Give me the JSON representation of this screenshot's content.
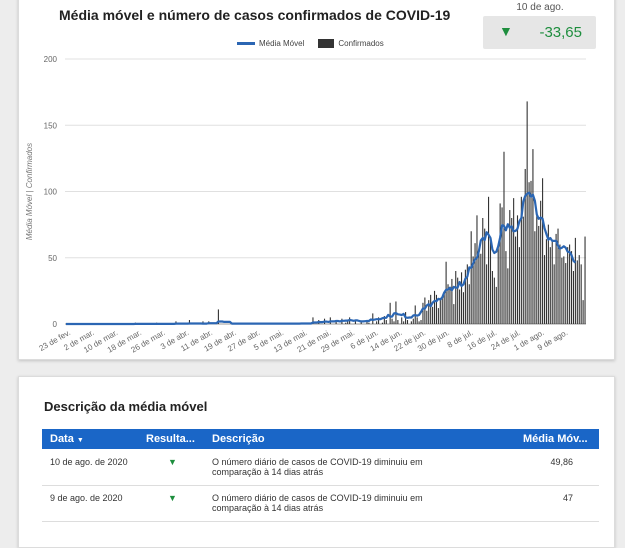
{
  "chart": {
    "title": "Média móvel e número de casos confirmados de COVID-19",
    "legend": {
      "line": "Média Móvel",
      "bars": "Confirmados"
    },
    "colors": {
      "line": "#2b66b3",
      "bars": "#333333",
      "grid": "#e0e0e0"
    }
  },
  "kpi": {
    "date": "10 de ago.",
    "value": "-33,65",
    "arrow_icon": "down-triangle-icon",
    "color": "#1e8e3e"
  },
  "chart_data": {
    "type": "bar",
    "ylabel": "Média Móvel | Confirmados",
    "ylim": [
      0,
      200
    ],
    "yticks": [
      "0",
      "50",
      "100",
      "150",
      "200"
    ],
    "xtick_labels": [
      "23 de fev.",
      "2 de mar.",
      "10 de mar.",
      "18 de mar.",
      "26 de mar.",
      "3 de abr.",
      "11 de abr.",
      "19 de abr.",
      "27 de abr.",
      "5 de mai.",
      "13 de mai.",
      "21 de mai.",
      "29 de mai.",
      "6 de jun.",
      "14 de jun.",
      "22 de jun.",
      "30 de jun.",
      "8 de jul.",
      "16 de jul.",
      "24 de jul.",
      "1 de ago.",
      "9 de ago."
    ],
    "series": [
      {
        "name": "Confirmados",
        "type": "bar",
        "values": [
          0,
          0,
          0,
          0,
          0,
          0,
          0,
          0,
          0,
          0,
          0,
          0,
          0,
          0,
          0,
          0,
          0,
          0,
          0,
          0,
          0,
          0,
          0,
          0,
          0,
          0,
          0,
          0,
          0,
          0,
          0,
          0,
          0,
          0,
          0,
          0,
          1,
          0,
          0,
          0,
          0,
          0,
          0,
          0,
          0,
          0,
          0,
          1,
          0,
          0,
          0,
          0,
          0,
          0,
          0,
          0,
          0,
          2,
          0,
          0,
          0,
          0,
          0,
          0,
          3,
          0,
          0,
          0,
          0,
          0,
          0,
          2,
          0,
          0,
          2,
          0,
          0,
          0,
          0,
          11,
          0,
          0,
          0,
          0,
          0,
          0,
          1,
          0,
          0,
          0,
          0,
          0,
          0,
          1,
          0,
          0,
          0,
          0,
          0,
          0,
          1,
          0,
          0,
          0,
          0,
          0,
          0,
          0,
          0,
          0,
          0,
          0,
          0,
          0,
          0,
          0,
          0,
          0,
          0,
          0,
          0,
          0,
          1,
          0,
          0,
          0,
          0,
          0,
          5,
          0,
          0,
          3,
          0,
          0,
          4,
          0,
          0,
          5,
          0,
          0,
          3,
          0,
          0,
          4,
          0,
          1,
          2,
          5,
          0,
          0,
          3,
          0,
          0,
          2,
          0,
          0,
          3,
          1,
          0,
          8,
          0,
          2,
          5,
          0,
          1,
          6,
          3,
          0,
          16,
          4,
          2,
          17,
          3,
          0,
          5,
          2,
          9,
          3,
          0,
          2,
          4,
          14,
          5,
          2,
          3,
          16,
          20,
          10,
          18,
          22,
          13,
          25,
          22,
          12,
          19,
          20,
          23,
          47,
          30,
          28,
          34,
          15,
          40,
          35,
          26,
          39,
          24,
          41,
          45,
          30,
          70,
          51,
          61,
          82,
          55,
          53,
          80,
          72,
          45,
          96,
          66,
          40,
          35,
          28,
          60,
          91,
          88,
          130,
          55,
          42,
          86,
          80,
          95,
          66,
          82,
          58,
          96,
          81,
          117,
          168,
          107,
          108,
          132,
          70,
          85,
          74,
          93,
          110,
          52,
          64,
          75,
          58,
          62,
          45,
          68,
          72,
          60,
          50,
          51,
          46,
          58,
          60,
          55,
          40,
          65,
          48,
          52,
          45,
          18,
          66
        ]
      },
      {
        "name": "Média Móvel",
        "type": "line",
        "values": [
          0,
          0,
          0,
          0,
          0,
          0,
          0,
          0,
          0,
          0,
          0,
          0,
          0,
          0,
          0,
          0,
          0,
          0,
          0,
          0,
          0,
          0,
          0,
          0,
          0,
          0,
          0,
          0,
          0,
          0,
          0,
          0,
          0,
          0,
          0,
          0,
          0.1,
          0.1,
          0.1,
          0.1,
          0.1,
          0.1,
          0.1,
          0.1,
          0.1,
          0.1,
          0.1,
          0.1,
          0.1,
          0.1,
          0.1,
          0.1,
          0.1,
          0.1,
          0.1,
          0.1,
          0.1,
          0.3,
          0.3,
          0.3,
          0.3,
          0.3,
          0.3,
          0.3,
          0.4,
          0.4,
          0.4,
          0.4,
          0.4,
          0.4,
          0.4,
          0.3,
          0.3,
          0.3,
          0.6,
          0.6,
          0.6,
          0.6,
          0.6,
          1.9,
          1.9,
          1.9,
          1.6,
          1.6,
          1.6,
          1.6,
          0.3,
          0.3,
          0.3,
          0.3,
          0.3,
          0.3,
          0.3,
          0.3,
          0.3,
          0.3,
          0.3,
          0.3,
          0.3,
          0.3,
          0.3,
          0.3,
          0.3,
          0.3,
          0.3,
          0.3,
          0.3,
          0.3,
          0.3,
          0.3,
          0.3,
          0.3,
          0.3,
          0.3,
          0.3,
          0.3,
          0.3,
          0.3,
          0.3,
          0.3,
          0.3,
          0.3,
          0.4,
          0.4,
          0.4,
          0.4,
          0.4,
          0.4,
          1.1,
          1.1,
          1.1,
          1.4,
          1.4,
          1.4,
          1.8,
          1.8,
          1.6,
          2.0,
          2.0,
          2.0,
          2.3,
          2.3,
          2.0,
          2.4,
          2.4,
          2.6,
          2.6,
          3.0,
          2.8,
          2.4,
          2.7,
          2.7,
          2.3,
          2.0,
          2.0,
          2.1,
          2.3,
          2.3,
          3.4,
          3.1,
          3.3,
          3.6,
          3.6,
          3.7,
          4.4,
          4.7,
          4.7,
          6.9,
          5.6,
          5.6,
          7.9,
          8.3,
          7.3,
          7.1,
          6.7,
          7.6,
          5.0,
          4.7,
          4.9,
          4.9,
          6.4,
          6.7,
          6.3,
          6.9,
          9.1,
          11.6,
          11.7,
          14.0,
          15.0,
          13.4,
          16.1,
          17.4,
          17.2,
          19.0,
          18.6,
          20.0,
          23.7,
          25.8,
          26.1,
          27.4,
          25.5,
          28.0,
          27.3,
          27.6,
          31.7,
          28.7,
          29.9,
          34.3,
          35.7,
          42.7,
          42.4,
          45.7,
          48.8,
          50.0,
          55.0,
          63.1,
          65.0,
          63.4,
          69.3,
          67.3,
          64.9,
          56.2,
          53.6,
          54.6,
          58.6,
          65.2,
          74.6,
          74.0,
          70.7,
          75.3,
          72.6,
          73.7,
          70.0,
          70.3,
          71.9,
          77.6,
          80.1,
          92.5,
          96.6,
          98.3,
          99.1,
          96.1,
          97.6,
          92.9,
          82.7,
          79.4,
          80.4,
          79.4,
          72.3,
          67.9,
          63.6,
          64.9,
          62.7,
          62.7,
          62.7,
          59.1,
          56.9,
          57.6,
          58.7,
          57.6,
          54.6,
          54.3,
          52.0,
          47.7,
          46.3
        ]
      }
    ]
  },
  "table": {
    "title": "Descrição da média móvel",
    "headers": {
      "date": "Data",
      "sort_icon": "sort-desc-icon",
      "result": "Resulta...",
      "description": "Descrição",
      "avg": "Média Móv..."
    },
    "rows": [
      {
        "date": "10 de ago. de 2020",
        "result_icon": "down-triangle-icon",
        "description": "O número diário de casos de COVID-19 diminuiu em comparação à 14 dias atrás",
        "avg": "49,86"
      },
      {
        "date": "9 de ago. de 2020",
        "result_icon": "down-triangle-icon",
        "description": "O número diário de casos de COVID-19 diminuiu em comparação à 14 dias atrás",
        "avg": "47"
      }
    ]
  }
}
